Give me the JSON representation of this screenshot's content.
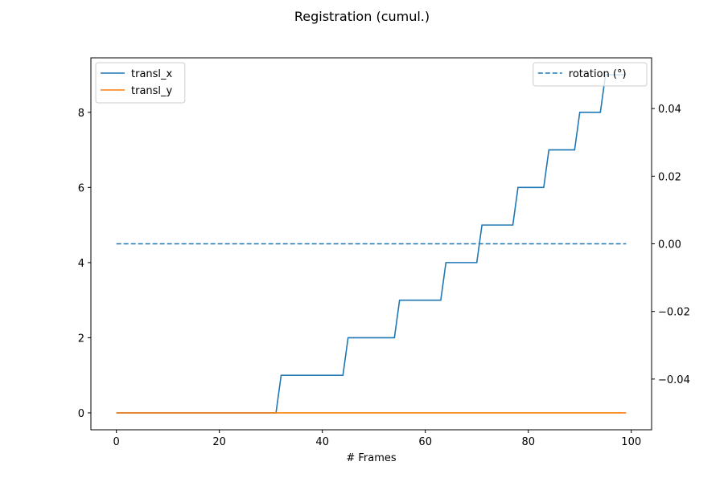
{
  "chart_data": {
    "type": "line",
    "title": "Registration (cumul.)",
    "xlabel": "# Frames",
    "ylabel": "",
    "y2label": "",
    "xlim": [
      -4.95,
      103.95
    ],
    "ylim": [
      -0.45,
      9.45
    ],
    "y2lim": [
      -0.055,
      0.055
    ],
    "xticks": [
      0,
      20,
      40,
      60,
      80,
      100
    ],
    "yticks": [
      0,
      2,
      4,
      6,
      8
    ],
    "y2ticks": [
      -0.04,
      -0.02,
      0.0,
      0.02,
      0.04
    ],
    "y2tick_labels": [
      "−0.04",
      "−0.02",
      "0.00",
      "0.02",
      "0.04"
    ],
    "grid": false,
    "series": [
      {
        "name": "transl_x",
        "axis": "left",
        "color": "#1f77b4",
        "style": "solid",
        "points": [
          [
            0,
            0
          ],
          [
            31,
            0
          ],
          [
            32,
            1
          ],
          [
            44,
            1
          ],
          [
            45,
            2
          ],
          [
            54,
            2
          ],
          [
            55,
            3
          ],
          [
            63,
            3
          ],
          [
            64,
            4
          ],
          [
            70,
            4
          ],
          [
            71,
            5
          ],
          [
            77,
            5
          ],
          [
            78,
            6
          ],
          [
            83,
            6
          ],
          [
            84,
            7
          ],
          [
            89,
            7
          ],
          [
            90,
            8
          ],
          [
            94,
            8
          ],
          [
            95,
            9
          ],
          [
            99,
            9
          ]
        ]
      },
      {
        "name": "transl_y",
        "axis": "left",
        "color": "#ff7f0e",
        "style": "solid",
        "points": [
          [
            0,
            0
          ],
          [
            99,
            0
          ]
        ]
      },
      {
        "name": "rotation (°)",
        "axis": "right",
        "color": "#1f77b4",
        "style": "dashed",
        "points": [
          [
            0,
            0
          ],
          [
            99,
            0
          ]
        ]
      }
    ],
    "legend_left": {
      "placement": "upper-left",
      "entries": [
        "transl_x",
        "transl_y"
      ]
    },
    "legend_right": {
      "placement": "upper-right",
      "entries": [
        "rotation (°)"
      ]
    }
  }
}
